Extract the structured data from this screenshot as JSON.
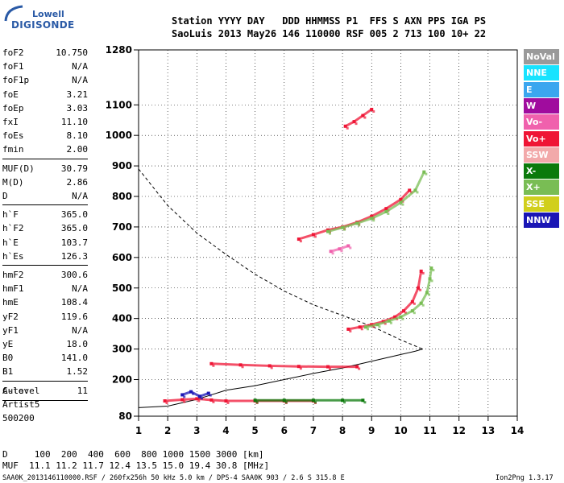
{
  "logo": {
    "line1": "Lowell",
    "line2": "DIGISONDE"
  },
  "header": {
    "row1": "Station YYYY DAY   DDD HHMMSS P1  FFS S AXN PPS IGA PS",
    "row2": "SaoLuis 2013 May26 146 110000 RSF 005 2 713 100 10+ 22"
  },
  "params": [
    {
      "name": "foF2",
      "value": "10.750"
    },
    {
      "name": "foF1",
      "value": "N/A"
    },
    {
      "name": "foF1p",
      "value": "N/A"
    },
    {
      "name": "foE",
      "value": "3.21"
    },
    {
      "name": "foEp",
      "value": "3.03"
    },
    {
      "name": "fxI",
      "value": "11.10"
    },
    {
      "name": "foEs",
      "value": "8.10"
    },
    {
      "name": "fmin",
      "value": "2.00"
    },
    {
      "name": "MUF(D)",
      "value": "30.79"
    },
    {
      "name": "M(D)",
      "value": "2.86"
    },
    {
      "name": "D",
      "value": "N/A"
    },
    {
      "name": "h`F",
      "value": "365.0"
    },
    {
      "name": "h`F2",
      "value": "365.0"
    },
    {
      "name": "h`E",
      "value": "103.7"
    },
    {
      "name": "h`Es",
      "value": "126.3"
    },
    {
      "name": "hmF2",
      "value": "300.6"
    },
    {
      "name": "hmF1",
      "value": "N/A"
    },
    {
      "name": "hmE",
      "value": "108.4"
    },
    {
      "name": "yF2",
      "value": "119.6"
    },
    {
      "name": "yF1",
      "value": "N/A"
    },
    {
      "name": "yE",
      "value": "18.0"
    },
    {
      "name": "B0",
      "value": "141.0"
    },
    {
      "name": "B1",
      "value": "1.52"
    },
    {
      "name": "C-level",
      "value": "11"
    }
  ],
  "auto": {
    "line1": "Auto:",
    "line2": "Artist5",
    "line3": "500200"
  },
  "legend": [
    {
      "label": "NoVal",
      "color": "#9a9a9a"
    },
    {
      "label": "NNE",
      "color": "#17e3ff"
    },
    {
      "label": "E",
      "color": "#3aa6ef"
    },
    {
      "label": "W",
      "color": "#a00c9e"
    },
    {
      "label": "Vo-",
      "color": "#f061ad"
    },
    {
      "label": "Vo+",
      "color": "#ef1535"
    },
    {
      "label": "SSW",
      "color": "#f2a9aa"
    },
    {
      "label": "X-",
      "color": "#0b7a0b"
    },
    {
      "label": "X+",
      "color": "#79bd54"
    },
    {
      "label": "SSE",
      "color": "#d1cf1c"
    },
    {
      "label": "NNW",
      "color": "#1a16b5"
    }
  ],
  "footer": {
    "dist_row": "D     100  200  400  600  800 1000 1500 3000 [km]",
    "muf_row": "MUF  11.1 11.2 11.7 12.4 13.5 15.0 19.4 30.8 [MHz]",
    "file_info": "SAA0K_2013146110000.RSF / 260fx256h 50 kHz 5.0 km / DPS-4 SAA0K 903 / 2.6 S 315.8 E",
    "version": "Ion2Png 1.3.17"
  },
  "chart_data": {
    "type": "scatter",
    "xlim": [
      1,
      14
    ],
    "ylim": [
      80,
      1280
    ],
    "x_ticks": [
      1,
      2,
      3,
      4,
      5,
      6,
      7,
      8,
      9,
      10,
      11,
      12,
      13,
      14
    ],
    "y_ticks": [
      80,
      200,
      300,
      400,
      500,
      600,
      700,
      800,
      900,
      1000,
      1100,
      1280
    ],
    "grid": true,
    "legend_position": "right",
    "series": [
      {
        "name": "Vo+",
        "color": "#ef1535",
        "x": [
          8.2,
          8.6,
          9.0,
          9.4,
          9.8,
          10.1,
          10.4,
          10.6,
          10.7
        ],
        "y": [
          365,
          372,
          380,
          390,
          405,
          425,
          455,
          500,
          555
        ]
      },
      {
        "name": "X+",
        "color": "#79bd54",
        "x": [
          8.8,
          9.2,
          9.6,
          10.0,
          10.4,
          10.7,
          10.9,
          11.0,
          11.05
        ],
        "y": [
          372,
          380,
          392,
          405,
          425,
          450,
          485,
          530,
          565
        ]
      },
      {
        "name": "Vo+",
        "color": "#ef1535",
        "x": [
          6.5,
          7.0,
          7.5,
          8.0,
          8.5,
          9.0,
          9.5,
          10.0,
          10.3
        ],
        "y": [
          660,
          675,
          690,
          700,
          715,
          735,
          760,
          790,
          820
        ]
      },
      {
        "name": "X+",
        "color": "#79bd54",
        "x": [
          7.5,
          8.0,
          8.5,
          9.0,
          9.5,
          10.0,
          10.5,
          10.8
        ],
        "y": [
          685,
          698,
          712,
          728,
          750,
          780,
          820,
          880
        ]
      },
      {
        "name": "Vo+",
        "color": "#ef1535",
        "x": [
          8.1,
          8.4,
          8.7,
          9.0
        ],
        "y": [
          1030,
          1045,
          1065,
          1085
        ]
      },
      {
        "name": "Vo+",
        "color": "#ef1535",
        "x": [
          3.5,
          4.5,
          5.5,
          6.5,
          7.5,
          8.5
        ],
        "y": [
          252,
          248,
          245,
          243,
          242,
          242
        ]
      },
      {
        "name": "Vo+",
        "color": "#ef1535",
        "x": [
          1.9,
          2.5,
          3.0,
          3.5,
          4.0,
          5.0,
          6.0,
          7.0
        ],
        "y": [
          130,
          134,
          137,
          133,
          130,
          130,
          130,
          130
        ]
      },
      {
        "name": "X-",
        "color": "#0b7a0b",
        "x": [
          5.0,
          6.0,
          7.0,
          8.0,
          8.7
        ],
        "y": [
          132,
          132,
          132,
          132,
          132
        ]
      },
      {
        "name": "NNW",
        "color": "#1a16b5",
        "x": [
          2.5,
          2.8,
          3.1,
          3.4
        ],
        "y": [
          150,
          160,
          145,
          155
        ]
      },
      {
        "name": "Vo-",
        "color": "#f061ad",
        "x": [
          7.6,
          7.9,
          8.2
        ],
        "y": [
          620,
          628,
          638
        ]
      }
    ],
    "profile": {
      "x": [
        1.0,
        2.0,
        3.0,
        4.0,
        5.0,
        6.0,
        7.0,
        8.0,
        9.0,
        10.0,
        10.5,
        10.75
      ],
      "y": [
        108,
        113,
        135,
        165,
        180,
        200,
        220,
        238,
        260,
        282,
        293,
        300
      ]
    },
    "virtual_height_dashed": {
      "x": [
        1.0,
        1.5,
        2.0,
        3.0,
        4.0,
        5.0,
        6.0,
        7.0,
        8.0,
        9.0,
        10.0,
        10.75
      ],
      "y": [
        890,
        830,
        770,
        680,
        610,
        545,
        490,
        445,
        410,
        375,
        330,
        300
      ]
    }
  }
}
